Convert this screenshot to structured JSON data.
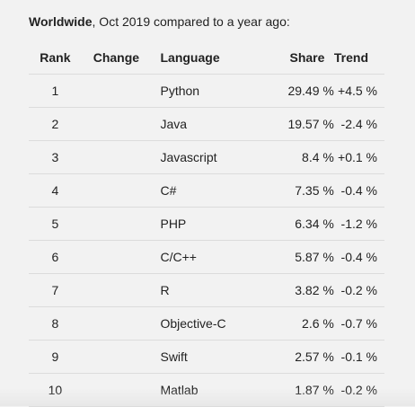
{
  "heading": {
    "bold": "Worldwide",
    "rest": ", Oct 2019 compared to a year ago:"
  },
  "table": {
    "headers": {
      "rank": "Rank",
      "change": "Change",
      "language": "Language",
      "share": "Share",
      "trend": "Trend"
    },
    "rows": [
      {
        "rank": "1",
        "change": "",
        "language": "Python",
        "share": "29.49 %",
        "trend": "+4.5 %"
      },
      {
        "rank": "2",
        "change": "",
        "language": "Java",
        "share": "19.57 %",
        "trend": "-2.4 %"
      },
      {
        "rank": "3",
        "change": "",
        "language": "Javascript",
        "share": "8.4 %",
        "trend": "+0.1 %"
      },
      {
        "rank": "4",
        "change": "",
        "language": "C#",
        "share": "7.35 %",
        "trend": "-0.4 %"
      },
      {
        "rank": "5",
        "change": "",
        "language": "PHP",
        "share": "6.34 %",
        "trend": "-1.2 %"
      },
      {
        "rank": "6",
        "change": "",
        "language": "C/C++",
        "share": "5.87 %",
        "trend": "-0.4 %"
      },
      {
        "rank": "7",
        "change": "",
        "language": "R",
        "share": "3.82 %",
        "trend": "-0.2 %"
      },
      {
        "rank": "8",
        "change": "",
        "language": "Objective-C",
        "share": "2.6 %",
        "trend": "-0.7 %"
      },
      {
        "rank": "9",
        "change": "",
        "language": "Swift",
        "share": "2.57 %",
        "trend": "-0.1 %"
      },
      {
        "rank": "10",
        "change": "",
        "language": "Matlab",
        "share": "1.87 %",
        "trend": "-0.2 %"
      }
    ]
  }
}
